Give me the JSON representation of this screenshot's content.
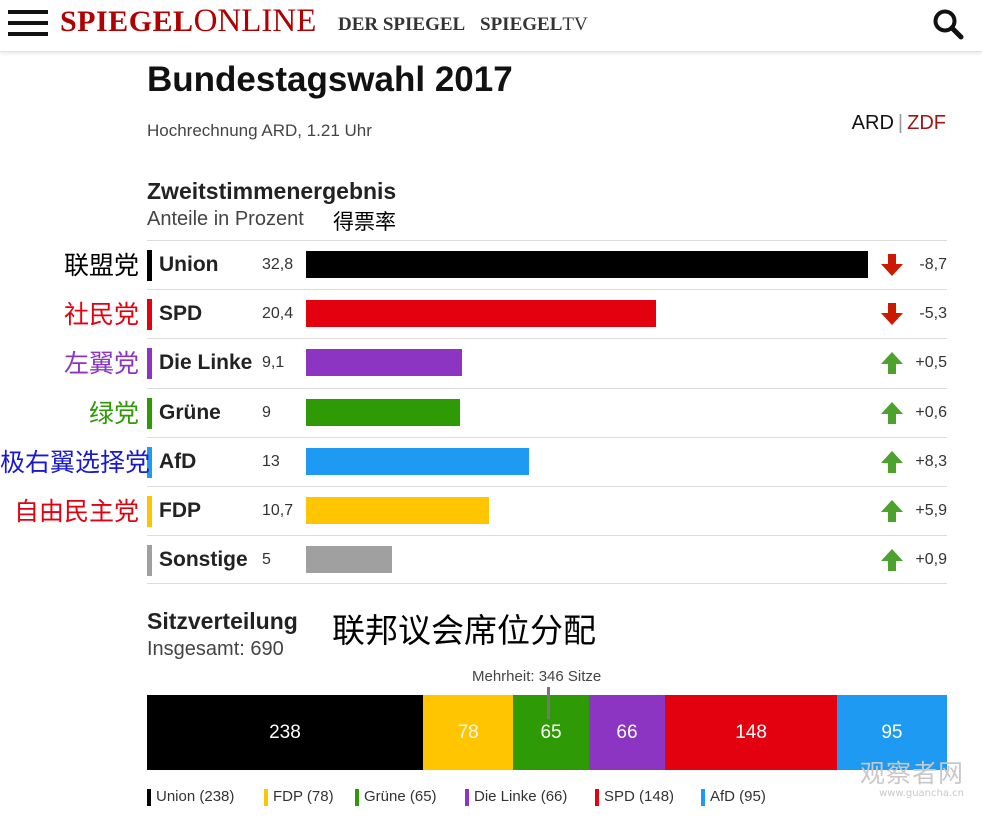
{
  "header": {
    "logo_bold": "SPIEGEL",
    "logo_rest": "ONLINE",
    "nav": [
      {
        "label_bold": "DER SPIEGEL",
        "label_rest": ""
      },
      {
        "label_bold": "SPIEGEL",
        "label_rest": "TV"
      }
    ],
    "menu_icon": "hamburger-menu-icon",
    "search_icon": "search-icon"
  },
  "title": "Bundestagswahl 2017",
  "subtitle": "Hochrechnung ARD, 1.21 Uhr",
  "source_switch": {
    "ard": "ARD",
    "sep": "|",
    "zdf": "ZDF",
    "zdf_color": "#a0151a"
  },
  "annotations": {
    "share_cn": "得票率",
    "seats_cn": "联邦议会席位分配"
  },
  "chart_data": [
    {
      "type": "bar",
      "title": "Zweitstimmenergebnis",
      "subtitle": "Anteile in Prozent",
      "unit": "%",
      "xlim": [
        0,
        35
      ],
      "rows": [
        {
          "party": "Union",
          "cn": "联盟党",
          "cn_color": "#000000",
          "value": 32.8,
          "value_label": "32,8",
          "color": "#000000",
          "change": -8.7,
          "change_label": "-8,7"
        },
        {
          "party": "SPD",
          "cn": "社民党",
          "cn_color": "#e3000f",
          "value": 20.4,
          "value_label": "20,4",
          "color": "#e3000f",
          "change": -5.3,
          "change_label": "-5,3"
        },
        {
          "party": "Die Linke",
          "cn": "左翼党",
          "cn_color": "#8b35c2",
          "value": 9.1,
          "value_label": "9,1",
          "color": "#8b35c2",
          "change": 0.5,
          "change_label": "+0,5"
        },
        {
          "party": "Grüne",
          "cn": "绿党",
          "cn_color": "#2e9a05",
          "value": 9,
          "value_label": "9",
          "color": "#2e9a05",
          "change": 0.6,
          "change_label": "+0,6"
        },
        {
          "party": "AfD",
          "cn": "极右翼选择党",
          "cn_color": "#1a1acc",
          "value": 13,
          "value_label": "13",
          "color": "#1f9af2",
          "change": 8.3,
          "change_label": "+8,3"
        },
        {
          "party": "FDP",
          "cn": "自由民主党",
          "cn_color": "#e3000f",
          "value": 10.7,
          "value_label": "10,7",
          "color": "#ffc600",
          "change": 5.9,
          "change_label": "+5,9"
        },
        {
          "party": "Sonstige",
          "cn": "",
          "cn_color": "#000000",
          "value": 5,
          "value_label": "5",
          "color": "#a0a0a0",
          "change": 0.9,
          "change_label": "+0,9"
        }
      ],
      "arrow_colors": {
        "down": "#cc1a00",
        "up": "#4ca22c"
      }
    },
    {
      "type": "stacked-bar",
      "title": "Sitzverteilung",
      "total_label": "Insgesamt: 690",
      "total": 690,
      "majority": 346,
      "majority_label": "Mehrheit: 346 Sitze",
      "segments": [
        {
          "party": "Union",
          "seats": 238,
          "color": "#000000",
          "legend": "Union (238)"
        },
        {
          "party": "FDP",
          "seats": 78,
          "color": "#ffc600",
          "legend": "FDP (78)"
        },
        {
          "party": "Grüne",
          "seats": 65,
          "color": "#2e9a05",
          "legend": "Grüne (65)"
        },
        {
          "party": "Die Linke",
          "seats": 66,
          "color": "#8b35c2",
          "legend": "Die Linke (66)"
        },
        {
          "party": "SPD",
          "seats": 148,
          "color": "#e3000f",
          "legend": "SPD (148)"
        },
        {
          "party": "AfD",
          "seats": 95,
          "color": "#1f9af2",
          "legend": "AfD (95)"
        }
      ]
    }
  ],
  "watermark": {
    "line1": "观察者网",
    "line2": "www.guancha.cn"
  }
}
